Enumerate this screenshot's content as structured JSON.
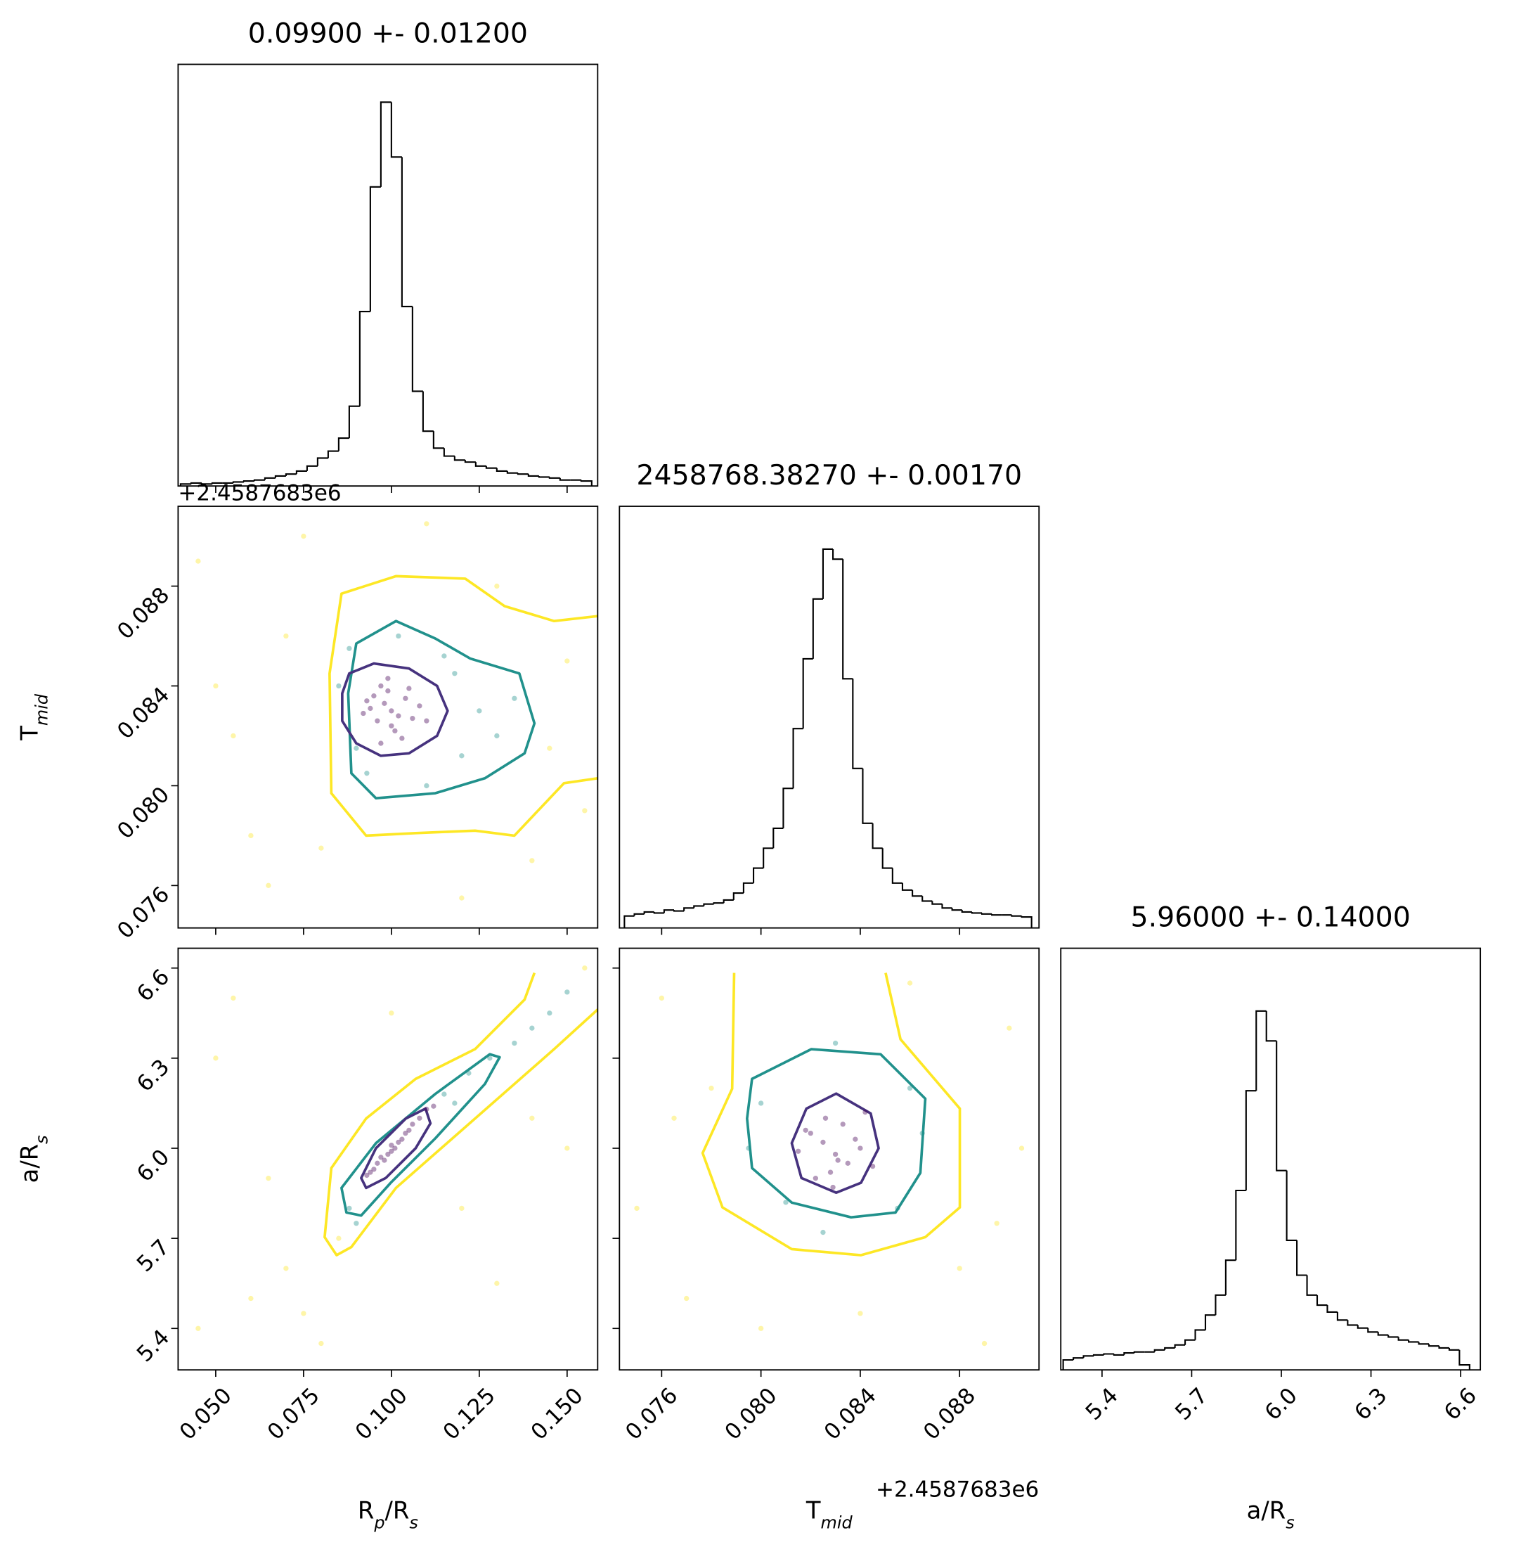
{
  "chart_data": {
    "type": "corner",
    "offset_text": "+2.4587683e6",
    "params": [
      {
        "label": [
          {
            "text": "R"
          },
          {
            "text": "p",
            "sub": true
          },
          {
            "text": "/R"
          },
          {
            "text": "s",
            "sub": true
          }
        ],
        "title": "0.09900 +- 0.01200",
        "lim": [
          0.0393,
          0.1587
        ],
        "ticks": [
          {
            "value": 0.05,
            "label": "0.050"
          },
          {
            "value": 0.075,
            "label": "0.075"
          },
          {
            "value": 0.1,
            "label": "0.100"
          },
          {
            "value": 0.125,
            "label": "0.125"
          },
          {
            "value": 0.15,
            "label": "0.150"
          }
        ],
        "bins": [
          0.04,
          0.043,
          0.046,
          0.049,
          0.052,
          0.055,
          0.058,
          0.061,
          0.064,
          0.067,
          0.07,
          0.073,
          0.076,
          0.079,
          0.082,
          0.085,
          0.088,
          0.091,
          0.094,
          0.097,
          0.1,
          0.103,
          0.106,
          0.109,
          0.112,
          0.115,
          0.118,
          0.121,
          0.124,
          0.127,
          0.13,
          0.133,
          0.136,
          0.139,
          0.142,
          0.145,
          0.148,
          0.151,
          0.154,
          0.157
        ],
        "counts": [
          2,
          3,
          2,
          3,
          3,
          4,
          5,
          6,
          8,
          10,
          12,
          15,
          20,
          28,
          35,
          48,
          80,
          175,
          300,
          385,
          330,
          180,
          95,
          55,
          38,
          30,
          26,
          24,
          20,
          18,
          15,
          13,
          12,
          10,
          9,
          8,
          6,
          6,
          5
        ],
        "count_lim": [
          0,
          423
        ]
      },
      {
        "label": [
          {
            "text": "T"
          },
          {
            "text": "mid",
            "sub": true
          }
        ],
        "title": "2458768.38270 +- 0.00170",
        "lim": [
          0.0743,
          0.0912
        ],
        "ticks": [
          0.076,
          {
            "value": 0.08,
            "label": "0.080"
          },
          0.084,
          0.088
        ],
        "bins": [
          0.0745,
          0.0749,
          0.0753,
          0.0757,
          0.0761,
          0.0765,
          0.0769,
          0.0773,
          0.0777,
          0.0781,
          0.0785,
          0.0789,
          0.0793,
          0.0797,
          0.0801,
          0.0805,
          0.0809,
          0.0813,
          0.0817,
          0.0821,
          0.0825,
          0.0829,
          0.0833,
          0.0837,
          0.0841,
          0.0845,
          0.0849,
          0.0853,
          0.0857,
          0.0861,
          0.0865,
          0.0869,
          0.0873,
          0.0877,
          0.0881,
          0.0885,
          0.0889,
          0.0893,
          0.0897,
          0.0901,
          0.0905,
          0.0909
        ],
        "counts": [
          12,
          14,
          16,
          15,
          18,
          17,
          20,
          22,
          24,
          25,
          28,
          35,
          45,
          60,
          80,
          100,
          140,
          200,
          270,
          330,
          380,
          370,
          250,
          160,
          105,
          80,
          60,
          45,
          38,
          32,
          27,
          24,
          20,
          18,
          16,
          15,
          14,
          13,
          13,
          12,
          11
        ],
        "count_lim": [
          0,
          423
        ]
      },
      {
        "label": [
          {
            "text": "a/R"
          },
          {
            "text": "s",
            "sub": true
          }
        ],
        "title": "5.96000 +- 0.14000",
        "lim": [
          5.262,
          6.666
        ],
        "ticks": [
          5.4,
          5.7,
          {
            "value": 6.0,
            "label": "6.0"
          },
          6.3,
          6.6
        ],
        "bins": [
          5.27,
          5.304,
          5.338,
          5.372,
          5.406,
          5.44,
          5.474,
          5.508,
          5.542,
          5.576,
          5.61,
          5.644,
          5.678,
          5.712,
          5.746,
          5.78,
          5.814,
          5.848,
          5.882,
          5.916,
          5.95,
          5.984,
          6.018,
          6.052,
          6.086,
          6.12,
          6.154,
          6.188,
          6.222,
          6.256,
          6.29,
          6.324,
          6.358,
          6.392,
          6.426,
          6.46,
          6.494,
          6.528,
          6.562,
          6.596,
          6.63
        ],
        "counts": [
          10,
          12,
          14,
          15,
          16,
          15,
          17,
          18,
          18,
          20,
          22,
          25,
          30,
          40,
          55,
          75,
          110,
          180,
          280,
          360,
          330,
          200,
          130,
          95,
          75,
          65,
          58,
          50,
          45,
          42,
          38,
          35,
          33,
          30,
          28,
          26,
          24,
          22,
          20,
          5
        ],
        "count_lim": [
          0,
          423
        ]
      }
    ],
    "hist_color": "#000000",
    "pairs": [
      {
        "params": [
          0,
          1
        ],
        "points": [
          {
            "color": "#fde725",
            "x": [
              0.045,
              0.06,
              0.15,
              0.07,
              0.14,
              0.055,
              0.075,
              0.13,
              0.155,
              0.065,
              0.12,
              0.05,
              0.08,
              0.145,
              0.11
            ],
            "y": [
              0.089,
              0.078,
              0.085,
              0.086,
              0.077,
              0.082,
              0.09,
              0.088,
              0.079,
              0.076,
              0.0755,
              0.084,
              0.0775,
              0.0815,
              0.0905
            ]
          },
          {
            "color": "#21918c",
            "x": [
              0.088,
              0.118,
              0.125,
              0.093,
              0.13,
              0.11,
              0.085,
              0.12,
              0.102,
              0.135,
              0.09,
              0.115
            ],
            "y": [
              0.0855,
              0.0845,
              0.083,
              0.0805,
              0.082,
              0.08,
              0.084,
              0.0812,
              0.086,
              0.0835,
              0.0815,
              0.0852
            ]
          },
          {
            "color": "#440154",
            "x": [
              0.1,
              0.098,
              0.102,
              0.096,
              0.104,
              0.099,
              0.101,
              0.094,
              0.106,
              0.097,
              0.103,
              0.095,
              0.108,
              0.092,
              0.1,
              0.099,
              0.105,
              0.097,
              0.11,
              0.093
            ],
            "y": [
              0.083,
              0.0833,
              0.0828,
              0.0826,
              0.0835,
              0.0838,
              0.0822,
              0.0831,
              0.0827,
              0.084,
              0.0819,
              0.0836,
              0.0832,
              0.0829,
              0.0824,
              0.0843,
              0.0839,
              0.0817,
              0.0826,
              0.0834
            ]
          }
        ],
        "contours": [
          {
            "color": "#fde725",
            "closed": false,
            "x": [
              0.1587,
              0.1463,
              0.1322,
              0.121,
              0.1013,
              0.0858,
              0.0824,
              0.0829,
              0.0928,
              0.1069,
              0.1238,
              0.135,
              0.1491,
              0.1587
            ],
            "y": [
              0.0868,
              0.0866,
              0.0872,
              0.0883,
              0.0884,
              0.0877,
              0.0845,
              0.0797,
              0.078,
              0.0781,
              0.0782,
              0.078,
              0.0801,
              0.0803
            ]
          },
          {
            "color": "#21918c",
            "closed": true,
            "x": [
              0.09,
              0.1013,
              0.1125,
              0.1224,
              0.1364,
              0.1407,
              0.1379,
              0.1266,
              0.1125,
              0.0956,
              0.0886,
              0.0877
            ],
            "y": [
              0.0857,
              0.0866,
              0.0859,
              0.0851,
              0.0845,
              0.0825,
              0.0813,
              0.0803,
              0.0797,
              0.0795,
              0.0805,
              0.0837
            ]
          },
          {
            "color": "#46327e",
            "closed": true,
            "x": [
              0.088,
              0.095,
              0.105,
              0.113,
              0.116,
              0.113,
              0.105,
              0.097,
              0.09,
              0.086,
              0.086
            ],
            "y": [
              0.0845,
              0.0849,
              0.0847,
              0.084,
              0.083,
              0.082,
              0.0813,
              0.0812,
              0.0817,
              0.0826,
              0.0837
            ]
          }
        ]
      },
      {
        "params": [
          0,
          2
        ],
        "points": [
          {
            "color": "#fde725",
            "x": [
              0.05,
              0.06,
              0.07,
              0.08,
              0.15,
              0.14,
              0.065,
              0.075,
              0.12,
              0.055,
              0.085,
              0.155,
              0.045,
              0.13,
              0.1
            ],
            "y": [
              6.3,
              5.5,
              5.6,
              5.35,
              6.0,
              6.1,
              5.9,
              5.45,
              5.8,
              6.5,
              5.7,
              6.6,
              5.4,
              5.55,
              6.45
            ]
          },
          {
            "color": "#21918c",
            "x": [
              0.088,
              0.115,
              0.122,
              0.128,
              0.14,
              0.145,
              0.09,
              0.118,
              0.135,
              0.15
            ],
            "y": [
              5.8,
              6.18,
              6.25,
              6.3,
              6.4,
              6.45,
              5.75,
              6.15,
              6.35,
              6.52
            ]
          },
          {
            "color": "#440154",
            "x": [
              0.095,
              0.098,
              0.1,
              0.102,
              0.104,
              0.096,
              0.106,
              0.099,
              0.108,
              0.093,
              0.101,
              0.11,
              0.097,
              0.103,
              0.094,
              0.112,
              0.1,
              0.105
            ],
            "y": [
              5.93,
              5.96,
              5.99,
              6.02,
              6.05,
              5.95,
              6.08,
              5.98,
              6.1,
              5.91,
              6.0,
              6.13,
              5.97,
              6.03,
              5.92,
              6.14,
              6.01,
              6.06
            ]
          }
        ],
        "contours": [
          {
            "color": "#fde725",
            "closed": false,
            "x": [
              0.1407,
              0.1379,
              0.1238,
              0.1069,
              0.0928,
              0.0829,
              0.081,
              0.0844,
              0.0886,
              0.1013,
              0.1238,
              0.1463,
              0.1587
            ],
            "y": [
              6.584,
              6.495,
              6.33,
              6.231,
              6.099,
              5.934,
              5.704,
              5.644,
              5.671,
              5.868,
              6.099,
              6.33,
              6.462
            ]
          },
          {
            "color": "#21918c",
            "closed": true,
            "x": [
              0.0872,
              0.0858,
              0.0956,
              0.1125,
              0.128,
              0.1308,
              0.1266,
              0.1125,
              0.0998,
              0.0914
            ],
            "y": [
              5.786,
              5.868,
              6.017,
              6.181,
              6.313,
              6.303,
              6.214,
              6.033,
              5.885,
              5.776
            ]
          },
          {
            "color": "#46327e",
            "closed": true,
            "x": [
              0.0914,
              0.0956,
              0.1041,
              0.1097,
              0.1111,
              0.1069,
              0.0984,
              0.0928
            ],
            "y": [
              5.901,
              6.0,
              6.099,
              6.132,
              6.083,
              6.0,
              5.901,
              5.868
            ]
          }
        ]
      },
      {
        "params": [
          1,
          2
        ],
        "points": [
          {
            "color": "#fde725",
            "x": [
              0.076,
              0.09,
              0.077,
              0.089,
              0.078,
              0.088,
              0.075,
              0.0905,
              0.08,
              0.086,
              0.0765,
              0.0895,
              0.084
            ],
            "y": [
              6.5,
              6.4,
              5.5,
              5.35,
              6.2,
              5.6,
              5.8,
              6.0,
              5.4,
              6.55,
              6.1,
              5.75,
              5.45
            ]
          },
          {
            "color": "#21918c",
            "x": [
              0.08,
              0.086,
              0.081,
              0.0855,
              0.0795,
              0.0865,
              0.083,
              0.0825
            ],
            "y": [
              6.15,
              6.2,
              5.82,
              5.8,
              6.0,
              6.05,
              6.35,
              5.72
            ]
          },
          {
            "color": "#440154",
            "x": [
              0.083,
              0.0825,
              0.0835,
              0.082,
              0.084,
              0.0828,
              0.0833,
              0.0815,
              0.0845,
              0.0826,
              0.0838,
              0.0822,
              0.0831,
              0.0818,
              0.0842,
              0.0829
            ],
            "y": [
              5.98,
              6.02,
              5.95,
              6.05,
              6.0,
              5.92,
              6.08,
              5.99,
              5.94,
              6.1,
              6.03,
              5.9,
              5.96,
              6.06,
              6.12,
              5.87
            ]
          }
        ],
        "contours": [
          {
            "color": "#fde725",
            "closed": false,
            "x": [
              0.07892,
              0.07884,
              0.07765,
              0.07845,
              0.08124,
              0.08403,
              0.08662,
              0.08801,
              0.08801,
              0.08562,
              0.08502
            ],
            "y": [
              6.584,
              6.198,
              5.984,
              5.803,
              5.664,
              5.644,
              5.704,
              5.803,
              6.132,
              6.363,
              6.584
            ]
          },
          {
            "color": "#21918c",
            "closed": true,
            "x": [
              0.07964,
              0.08203,
              0.08482,
              0.08662,
              0.08642,
              0.08542,
              0.08363,
              0.08124,
              0.07964,
              0.07944
            ],
            "y": [
              6.231,
              6.33,
              6.313,
              6.165,
              5.918,
              5.786,
              5.77,
              5.819,
              5.934,
              6.099
            ]
          },
          {
            "color": "#46327e",
            "closed": true,
            "x": [
              0.08303,
              0.08442,
              0.08474,
              0.08403,
              0.08303,
              0.08163,
              0.08124,
              0.08183
            ],
            "y": [
              6.182,
              6.116,
              6.0,
              5.885,
              5.852,
              5.901,
              6.017,
              6.132
            ]
          }
        ]
      }
    ]
  }
}
